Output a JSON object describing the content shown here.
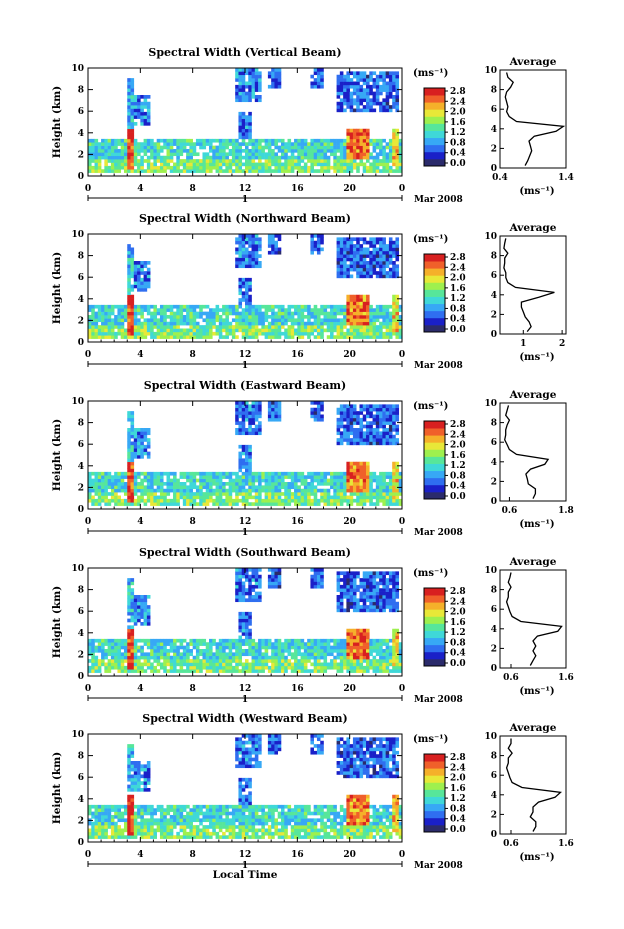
{
  "chart_data": {
    "type": "heatmap",
    "xlabel": "Local Time",
    "date_label": "Mar 2008",
    "day_label": "1",
    "x_ticks": [
      "0",
      "4",
      "8",
      "12",
      "16",
      "20",
      "0"
    ],
    "x_range_hours": [
      0,
      24
    ],
    "ylabel": "Height (km)",
    "y_ticks": [
      "0",
      "2",
      "4",
      "6",
      "8",
      "10"
    ],
    "ylim": [
      0,
      10
    ],
    "colorbar": {
      "unit_label": "(ms⁻¹)",
      "ticks": [
        "0.0",
        "0.4",
        "0.8",
        "1.2",
        "1.6",
        "2.0",
        "2.4",
        "2.8"
      ],
      "range": [
        0,
        2.8
      ],
      "colors": [
        "#2b2b6b",
        "#1a20c8",
        "#2f6ef0",
        "#37a8f5",
        "#3fd8d8",
        "#57e69a",
        "#9ef04e",
        "#e8e838",
        "#f5b02a",
        "#f0602a",
        "#d82020"
      ]
    },
    "profile_title": "Average",
    "profile_xlabel": "(ms⁻¹)",
    "profile_heights_km": [
      0.25,
      0.75,
      1.25,
      1.75,
      2.25,
      2.75,
      3.25,
      3.75,
      4.25,
      4.75,
      5.25,
      5.75,
      6.25,
      6.75,
      7.25,
      7.75,
      8.25,
      8.75,
      9.25,
      9.75
    ],
    "panels": [
      {
        "title": "Spectral Width (Vertical Beam)",
        "profile_ticks": [
          "0.4",
          "1.4"
        ],
        "profile_xlim": [
          0.4,
          1.4
        ],
        "profile_sw": [
          0.78,
          0.82,
          0.85,
          0.88,
          0.86,
          0.84,
          0.92,
          1.25,
          1.36,
          0.65,
          0.54,
          0.5,
          0.52,
          0.5,
          0.48,
          0.5,
          0.56,
          0.6,
          0.52,
          0.5
        ]
      },
      {
        "title": "Spectral Width (Northward Beam)",
        "profile_ticks": [
          "1",
          "2"
        ],
        "profile_xlim": [
          0.4,
          2.1
        ],
        "profile_sw": [
          1.1,
          1.2,
          1.15,
          1.05,
          1.0,
          0.95,
          0.95,
          1.4,
          1.8,
          0.8,
          0.6,
          0.55,
          0.55,
          0.5,
          0.52,
          0.52,
          0.6,
          0.5,
          0.52,
          0.55
        ]
      },
      {
        "title": "Spectral Width (Eastward Beam)",
        "profile_ticks": [
          "0.6",
          "1.8"
        ],
        "profile_xlim": [
          0.4,
          1.8
        ],
        "profile_sw": [
          1.1,
          1.15,
          1.15,
          1.0,
          0.98,
          0.95,
          1.05,
          1.35,
          1.42,
          0.75,
          0.6,
          0.55,
          0.5,
          0.52,
          0.52,
          0.55,
          0.6,
          0.52,
          0.55,
          0.58
        ]
      },
      {
        "title": "Spectral Width (Southward Beam)",
        "profile_ticks": [
          "0.6",
          "1.6"
        ],
        "profile_xlim": [
          0.4,
          1.6
        ],
        "profile_sw": [
          0.95,
          1.0,
          1.05,
          1.0,
          1.05,
          1.0,
          1.08,
          1.45,
          1.52,
          0.78,
          0.62,
          0.58,
          0.55,
          0.52,
          0.55,
          0.55,
          0.6,
          0.55,
          0.58,
          0.6
        ]
      },
      {
        "title": "Spectral Width (Westward Beam)",
        "profile_ticks": [
          "0.6",
          "1.6"
        ],
        "profile_xlim": [
          0.4,
          1.6
        ],
        "profile_sw": [
          1.0,
          1.05,
          1.05,
          0.95,
          1.0,
          1.0,
          1.1,
          1.4,
          1.5,
          0.8,
          0.62,
          0.58,
          0.55,
          0.52,
          0.55,
          0.55,
          0.62,
          0.55,
          0.6,
          0.6
        ]
      }
    ]
  }
}
